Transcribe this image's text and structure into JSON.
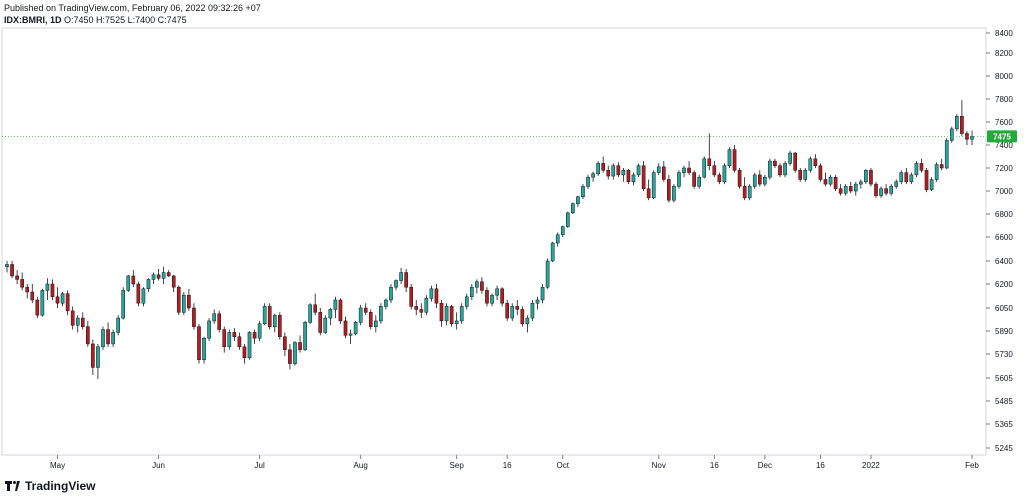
{
  "header": {
    "published": "Published on TradingView.com, February 06, 2022 09:32:26 +07",
    "symbol": "IDX:BMRI, 1D",
    "ohlc": "O:7450 H:7525 L:7400 C:7475"
  },
  "footer": {
    "brand": "TradingView",
    "logo_icon": "tradingview-logo-icon"
  },
  "colors": {
    "up": "#26a69a",
    "down": "#b71c1c",
    "up_fill": "#26a69a",
    "price_line": "#4caf50",
    "axis": "#787b86",
    "grid_border": "#d1d4dc"
  },
  "chart_data": {
    "type": "candlestick",
    "symbol": "IDX:BMRI",
    "interval": "1D",
    "last_price": 7475,
    "last_price_label": "7475",
    "y_ticks": [
      5245,
      5365,
      5485,
      5605,
      5730,
      5890,
      6050,
      6200,
      6400,
      6600,
      6800,
      7000,
      7200,
      7400,
      7600,
      7800,
      8000,
      8200,
      8400
    ],
    "x_ticks": [
      {
        "label": "May",
        "index": 10
      },
      {
        "label": "Jun",
        "index": 30
      },
      {
        "label": "Jul",
        "index": 50
      },
      {
        "label": "Aug",
        "index": 70
      },
      {
        "label": "Sep",
        "index": 89
      },
      {
        "label": "16",
        "index": 99
      },
      {
        "label": "Oct",
        "index": 110
      },
      {
        "label": "Nov",
        "index": 129
      },
      {
        "label": "16",
        "index": 140
      },
      {
        "label": "Dec",
        "index": 150
      },
      {
        "label": "16",
        "index": 161
      },
      {
        "label": "2022",
        "index": 171
      },
      {
        "label": "Feb",
        "index": 191
      }
    ],
    "candles": [
      [
        6350,
        6400,
        6300,
        6370
      ],
      [
        6370,
        6400,
        6250,
        6270
      ],
      [
        6270,
        6320,
        6200,
        6240
      ],
      [
        6240,
        6300,
        6160,
        6180
      ],
      [
        6180,
        6200,
        6110,
        6150
      ],
      [
        6150,
        6200,
        6080,
        6100
      ],
      [
        6100,
        6120,
        5980,
        6000
      ],
      [
        6000,
        6170,
        5990,
        6160
      ],
      [
        6160,
        6250,
        6100,
        6200
      ],
      [
        6200,
        6240,
        6100,
        6120
      ],
      [
        6120,
        6180,
        6050,
        6080
      ],
      [
        6080,
        6150,
        6060,
        6140
      ],
      [
        6140,
        6160,
        6000,
        6030
      ],
      [
        6030,
        6060,
        5900,
        5930
      ],
      [
        5930,
        6000,
        5880,
        5980
      ],
      [
        5980,
        6020,
        5900,
        5920
      ],
      [
        5920,
        5960,
        5780,
        5800
      ],
      [
        5800,
        5830,
        5620,
        5660
      ],
      [
        5660,
        5800,
        5600,
        5780
      ],
      [
        5780,
        5920,
        5760,
        5900
      ],
      [
        5900,
        5950,
        5780,
        5800
      ],
      [
        5800,
        5900,
        5780,
        5880
      ],
      [
        5880,
        6000,
        5860,
        5980
      ],
      [
        5980,
        6180,
        5970,
        6160
      ],
      [
        6160,
        6280,
        6150,
        6270
      ],
      [
        6270,
        6320,
        6180,
        6200
      ],
      [
        6200,
        6220,
        6060,
        6080
      ],
      [
        6080,
        6180,
        6060,
        6170
      ],
      [
        6170,
        6250,
        6150,
        6240
      ],
      [
        6240,
        6300,
        6200,
        6280
      ],
      [
        6280,
        6330,
        6230,
        6250
      ],
      [
        6250,
        6350,
        6200,
        6300
      ],
      [
        6300,
        6320,
        6260,
        6270
      ],
      [
        6270,
        6280,
        6150,
        6180
      ],
      [
        6180,
        6190,
        6000,
        6020
      ],
      [
        6020,
        6150,
        6000,
        6130
      ],
      [
        6130,
        6170,
        6030,
        6050
      ],
      [
        6050,
        6080,
        5900,
        5920
      ],
      [
        5920,
        5940,
        5680,
        5700
      ],
      [
        5700,
        5850,
        5680,
        5840
      ],
      [
        5840,
        5980,
        5820,
        5960
      ],
      [
        5960,
        6040,
        5940,
        6010
      ],
      [
        6010,
        6030,
        5880,
        5900
      ],
      [
        5900,
        5920,
        5740,
        5780
      ],
      [
        5780,
        5900,
        5760,
        5880
      ],
      [
        5880,
        5910,
        5820,
        5850
      ],
      [
        5850,
        5880,
        5760,
        5780
      ],
      [
        5780,
        5800,
        5680,
        5710
      ],
      [
        5710,
        5890,
        5700,
        5880
      ],
      [
        5880,
        5900,
        5800,
        5840
      ],
      [
        5840,
        5960,
        5820,
        5940
      ],
      [
        5940,
        6080,
        5930,
        6060
      ],
      [
        6060,
        6080,
        5900,
        5920
      ],
      [
        5920,
        6010,
        5880,
        6000
      ],
      [
        6000,
        6020,
        5830,
        5850
      ],
      [
        5850,
        5880,
        5720,
        5760
      ],
      [
        5760,
        5800,
        5650,
        5680
      ],
      [
        5680,
        5820,
        5670,
        5810
      ],
      [
        5810,
        5860,
        5740,
        5760
      ],
      [
        5760,
        5960,
        5750,
        5950
      ],
      [
        5950,
        6080,
        5940,
        6070
      ],
      [
        6070,
        6140,
        6000,
        6020
      ],
      [
        6020,
        6050,
        5860,
        5880
      ],
      [
        5880,
        6000,
        5870,
        5980
      ],
      [
        5980,
        6050,
        5930,
        6040
      ],
      [
        6040,
        6120,
        5980,
        6100
      ],
      [
        6100,
        6110,
        5940,
        5960
      ],
      [
        5960,
        5990,
        5840,
        5860
      ],
      [
        5860,
        5900,
        5800,
        5870
      ],
      [
        5870,
        5960,
        5860,
        5950
      ],
      [
        5950,
        6070,
        5930,
        6050
      ],
      [
        6050,
        6080,
        6000,
        6020
      ],
      [
        6020,
        6040,
        5900,
        5920
      ],
      [
        5920,
        6000,
        5880,
        5960
      ],
      [
        5960,
        6080,
        5940,
        6060
      ],
      [
        6060,
        6110,
        6040,
        6100
      ],
      [
        6100,
        6200,
        6080,
        6180
      ],
      [
        6180,
        6240,
        6160,
        6230
      ],
      [
        6230,
        6340,
        6200,
        6300
      ],
      [
        6300,
        6330,
        6150,
        6180
      ],
      [
        6180,
        6200,
        6040,
        6060
      ],
      [
        6060,
        6100,
        6000,
        6040
      ],
      [
        6040,
        6080,
        5980,
        6020
      ],
      [
        6020,
        6130,
        6000,
        6110
      ],
      [
        6110,
        6190,
        6090,
        6170
      ],
      [
        6170,
        6200,
        6050,
        6080
      ],
      [
        6080,
        6100,
        5920,
        5960
      ],
      [
        5960,
        6080,
        5930,
        6060
      ],
      [
        6060,
        6070,
        5920,
        5940
      ],
      [
        5940,
        6020,
        5900,
        5960
      ],
      [
        5960,
        6080,
        5940,
        6060
      ],
      [
        6060,
        6140,
        6040,
        6120
      ],
      [
        6120,
        6200,
        6100,
        6180
      ],
      [
        6180,
        6240,
        6140,
        6220
      ],
      [
        6220,
        6260,
        6140,
        6160
      ],
      [
        6160,
        6180,
        6060,
        6080
      ],
      [
        6080,
        6140,
        6060,
        6130
      ],
      [
        6130,
        6190,
        6100,
        6170
      ],
      [
        6170,
        6180,
        6060,
        6080
      ],
      [
        6080,
        6100,
        5960,
        5980
      ],
      [
        5980,
        6080,
        5960,
        6060
      ],
      [
        6060,
        6100,
        6000,
        6040
      ],
      [
        6040,
        6060,
        5920,
        5940
      ],
      [
        5940,
        6000,
        5880,
        5980
      ],
      [
        5980,
        6100,
        5960,
        6080
      ],
      [
        6080,
        6120,
        6040,
        6100
      ],
      [
        6100,
        6200,
        6080,
        6180
      ],
      [
        6180,
        6420,
        6170,
        6400
      ],
      [
        6400,
        6560,
        6390,
        6550
      ],
      [
        6550,
        6640,
        6520,
        6620
      ],
      [
        6620,
        6700,
        6600,
        6690
      ],
      [
        6690,
        6820,
        6680,
        6810
      ],
      [
        6810,
        6900,
        6800,
        6890
      ],
      [
        6890,
        6960,
        6860,
        6950
      ],
      [
        6950,
        7060,
        6930,
        7040
      ],
      [
        7040,
        7140,
        7020,
        7120
      ],
      [
        7120,
        7170,
        7080,
        7150
      ],
      [
        7150,
        7260,
        7130,
        7240
      ],
      [
        7240,
        7300,
        7160,
        7180
      ],
      [
        7180,
        7220,
        7100,
        7130
      ],
      [
        7130,
        7240,
        7100,
        7220
      ],
      [
        7220,
        7250,
        7120,
        7140
      ],
      [
        7140,
        7200,
        7080,
        7180
      ],
      [
        7180,
        7190,
        7060,
        7080
      ],
      [
        7080,
        7160,
        7050,
        7140
      ],
      [
        7140,
        7240,
        7120,
        7220
      ],
      [
        7220,
        7260,
        7000,
        7020
      ],
      [
        7020,
        7100,
        6920,
        6940
      ],
      [
        6940,
        7180,
        6930,
        7160
      ],
      [
        7160,
        7240,
        7140,
        7210
      ],
      [
        7210,
        7260,
        7080,
        7100
      ],
      [
        7100,
        7140,
        6900,
        6920
      ],
      [
        6920,
        7060,
        6900,
        7040
      ],
      [
        7040,
        7180,
        7020,
        7160
      ],
      [
        7160,
        7220,
        7120,
        7200
      ],
      [
        7200,
        7260,
        7140,
        7160
      ],
      [
        7160,
        7180,
        7020,
        7040
      ],
      [
        7040,
        7140,
        7020,
        7120
      ],
      [
        7120,
        7300,
        7110,
        7280
      ],
      [
        7280,
        7500,
        7180,
        7220
      ],
      [
        7220,
        7260,
        7120,
        7140
      ],
      [
        7140,
        7160,
        7060,
        7080
      ],
      [
        7080,
        7240,
        7060,
        7220
      ],
      [
        7220,
        7380,
        7200,
        7360
      ],
      [
        7360,
        7400,
        7160,
        7180
      ],
      [
        7180,
        7200,
        7020,
        7040
      ],
      [
        7040,
        7120,
        6920,
        6940
      ],
      [
        6940,
        7060,
        6920,
        7040
      ],
      [
        7040,
        7160,
        7020,
        7140
      ],
      [
        7140,
        7180,
        7040,
        7060
      ],
      [
        7060,
        7140,
        7040,
        7120
      ],
      [
        7120,
        7280,
        7100,
        7260
      ],
      [
        7260,
        7280,
        7200,
        7220
      ],
      [
        7220,
        7240,
        7120,
        7140
      ],
      [
        7140,
        7260,
        7120,
        7240
      ],
      [
        7240,
        7350,
        7220,
        7330
      ],
      [
        7330,
        7340,
        7160,
        7180
      ],
      [
        7180,
        7200,
        7080,
        7100
      ],
      [
        7100,
        7200,
        7080,
        7180
      ],
      [
        7180,
        7300,
        7160,
        7280
      ],
      [
        7280,
        7320,
        7200,
        7220
      ],
      [
        7220,
        7240,
        7080,
        7100
      ],
      [
        7100,
        7160,
        7040,
        7060
      ],
      [
        7060,
        7140,
        7040,
        7120
      ],
      [
        7120,
        7140,
        7000,
        7020
      ],
      [
        7020,
        7060,
        6960,
        6980
      ],
      [
        6980,
        7060,
        6960,
        7040
      ],
      [
        7040,
        7080,
        6980,
        7000
      ],
      [
        7000,
        7080,
        6960,
        7060
      ],
      [
        7060,
        7100,
        7020,
        7080
      ],
      [
        7080,
        7190,
        7060,
        7180
      ],
      [
        7180,
        7200,
        7040,
        7060
      ],
      [
        7060,
        7080,
        6940,
        6960
      ],
      [
        6960,
        7040,
        6940,
        7020
      ],
      [
        7020,
        7060,
        6960,
        6980
      ],
      [
        6980,
        7060,
        6960,
        7040
      ],
      [
        7040,
        7100,
        7020,
        7080
      ],
      [
        7080,
        7180,
        7060,
        7160
      ],
      [
        7160,
        7200,
        7060,
        7080
      ],
      [
        7080,
        7160,
        7060,
        7140
      ],
      [
        7140,
        7260,
        7120,
        7240
      ],
      [
        7240,
        7280,
        7160,
        7180
      ],
      [
        7180,
        7200,
        6990,
        7010
      ],
      [
        7010,
        7120,
        7000,
        7100
      ],
      [
        7100,
        7250,
        7080,
        7230
      ],
      [
        7230,
        7280,
        7180,
        7200
      ],
      [
        7200,
        7460,
        7190,
        7440
      ],
      [
        7440,
        7560,
        7420,
        7540
      ],
      [
        7540,
        7670,
        7520,
        7650
      ],
      [
        7650,
        7790,
        7480,
        7500
      ],
      [
        7500,
        7520,
        7400,
        7450
      ],
      [
        7450,
        7525,
        7400,
        7475
      ]
    ]
  }
}
